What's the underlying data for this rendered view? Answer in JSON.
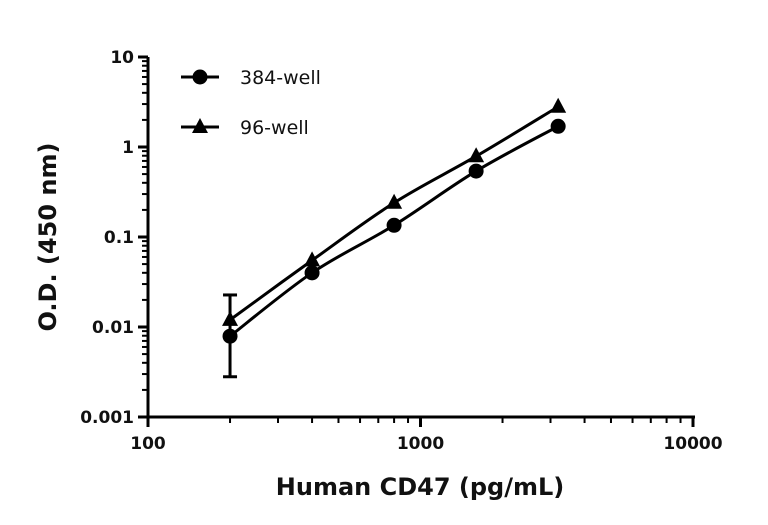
{
  "chart_data": {
    "type": "line",
    "xlabel": "Human CD47 (pg/mL)",
    "ylabel": "O.D. (450 nm)",
    "xscale": "log",
    "yscale": "log",
    "xlim": [
      100,
      10000
    ],
    "ylim": [
      0.001,
      10
    ],
    "xticks": [
      "100",
      "1000",
      "10000"
    ],
    "yticks": [
      "10",
      "1",
      "0.1",
      "0.01",
      "0.001"
    ],
    "grid": false,
    "legend_position": "top-left",
    "series": [
      {
        "name": "384-well",
        "marker": "circle",
        "color": "#000000",
        "x": [
          200,
          400,
          800,
          1600,
          3200
        ],
        "y": [
          0.0079,
          0.04,
          0.135,
          0.54,
          1.7
        ],
        "error": [
          [
            0.0028,
            0.0227
          ],
          null,
          null,
          null,
          null
        ]
      },
      {
        "name": "96-well",
        "marker": "triangle",
        "color": "#000000",
        "x": [
          200,
          400,
          800,
          1600,
          3200
        ],
        "y": [
          0.012,
          0.055,
          0.24,
          0.79,
          2.8
        ]
      }
    ]
  }
}
